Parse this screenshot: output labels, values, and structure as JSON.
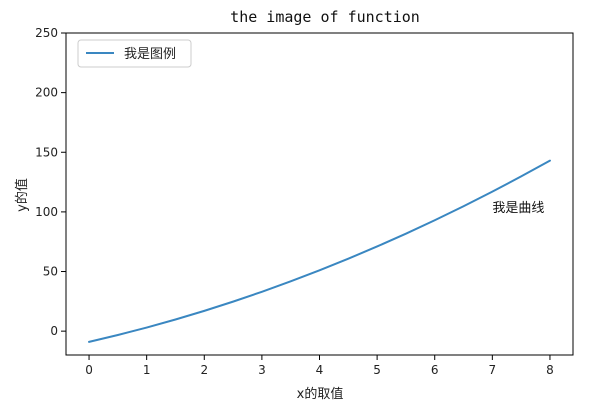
{
  "chart_data": {
    "type": "line",
    "title": "the image of function",
    "xlabel": "x的取值",
    "ylabel": "y的值",
    "xlim": [
      -0.4,
      8.4
    ],
    "ylim": [
      -20,
      250
    ],
    "xticks": [
      0,
      1,
      2,
      3,
      4,
      5,
      6,
      7,
      8
    ],
    "yticks": [
      0,
      50,
      100,
      150,
      200,
      250
    ],
    "grid": false,
    "legend_position": "top-left",
    "annotation": {
      "text": "我是曲线",
      "x": 7.0,
      "y": 100
    },
    "series": [
      {
        "name": "我是图例",
        "color": "#3a87c1",
        "x": [
          0,
          0.5,
          1,
          1.5,
          2,
          2.5,
          3,
          3.5,
          4,
          4.5,
          5,
          5.5,
          6,
          6.5,
          7,
          7.5,
          8
        ],
        "y": [
          -9,
          -3.25,
          3,
          9.75,
          17,
          24.75,
          33,
          41.75,
          51,
          60.75,
          71,
          81.75,
          93,
          104.75,
          117,
          129.75,
          143
        ]
      }
    ]
  }
}
